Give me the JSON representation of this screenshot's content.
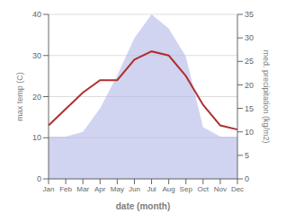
{
  "chart_data": {
    "type": "line",
    "xlabel": "date (month)",
    "ylabel": "max temp (C)",
    "y2label": "med. precipitation (kg/m2)",
    "categories": [
      "Jan",
      "Feb",
      "Mar",
      "Apr",
      "May",
      "Jun",
      "Jul",
      "Aug",
      "Sep",
      "Oct",
      "Nov",
      "Dec"
    ],
    "series": [
      {
        "type": "area",
        "axis": "y2",
        "color": "#b0b8e8",
        "values": [
          9,
          9,
          10,
          15,
          22,
          30,
          35,
          32,
          26,
          11,
          9,
          9
        ]
      },
      {
        "type": "line",
        "color": "#b03030",
        "values": [
          13,
          17,
          21,
          24,
          24,
          29,
          31,
          30,
          25,
          18,
          13,
          12
        ]
      }
    ],
    "ylim": [
      0,
      40
    ],
    "yticks": [
      0,
      10,
      20,
      30,
      40
    ],
    "y2lim": [
      0,
      35
    ],
    "y2ticks": [
      0,
      5,
      10,
      15,
      20,
      25,
      30,
      35
    ],
    "grid": true
  }
}
